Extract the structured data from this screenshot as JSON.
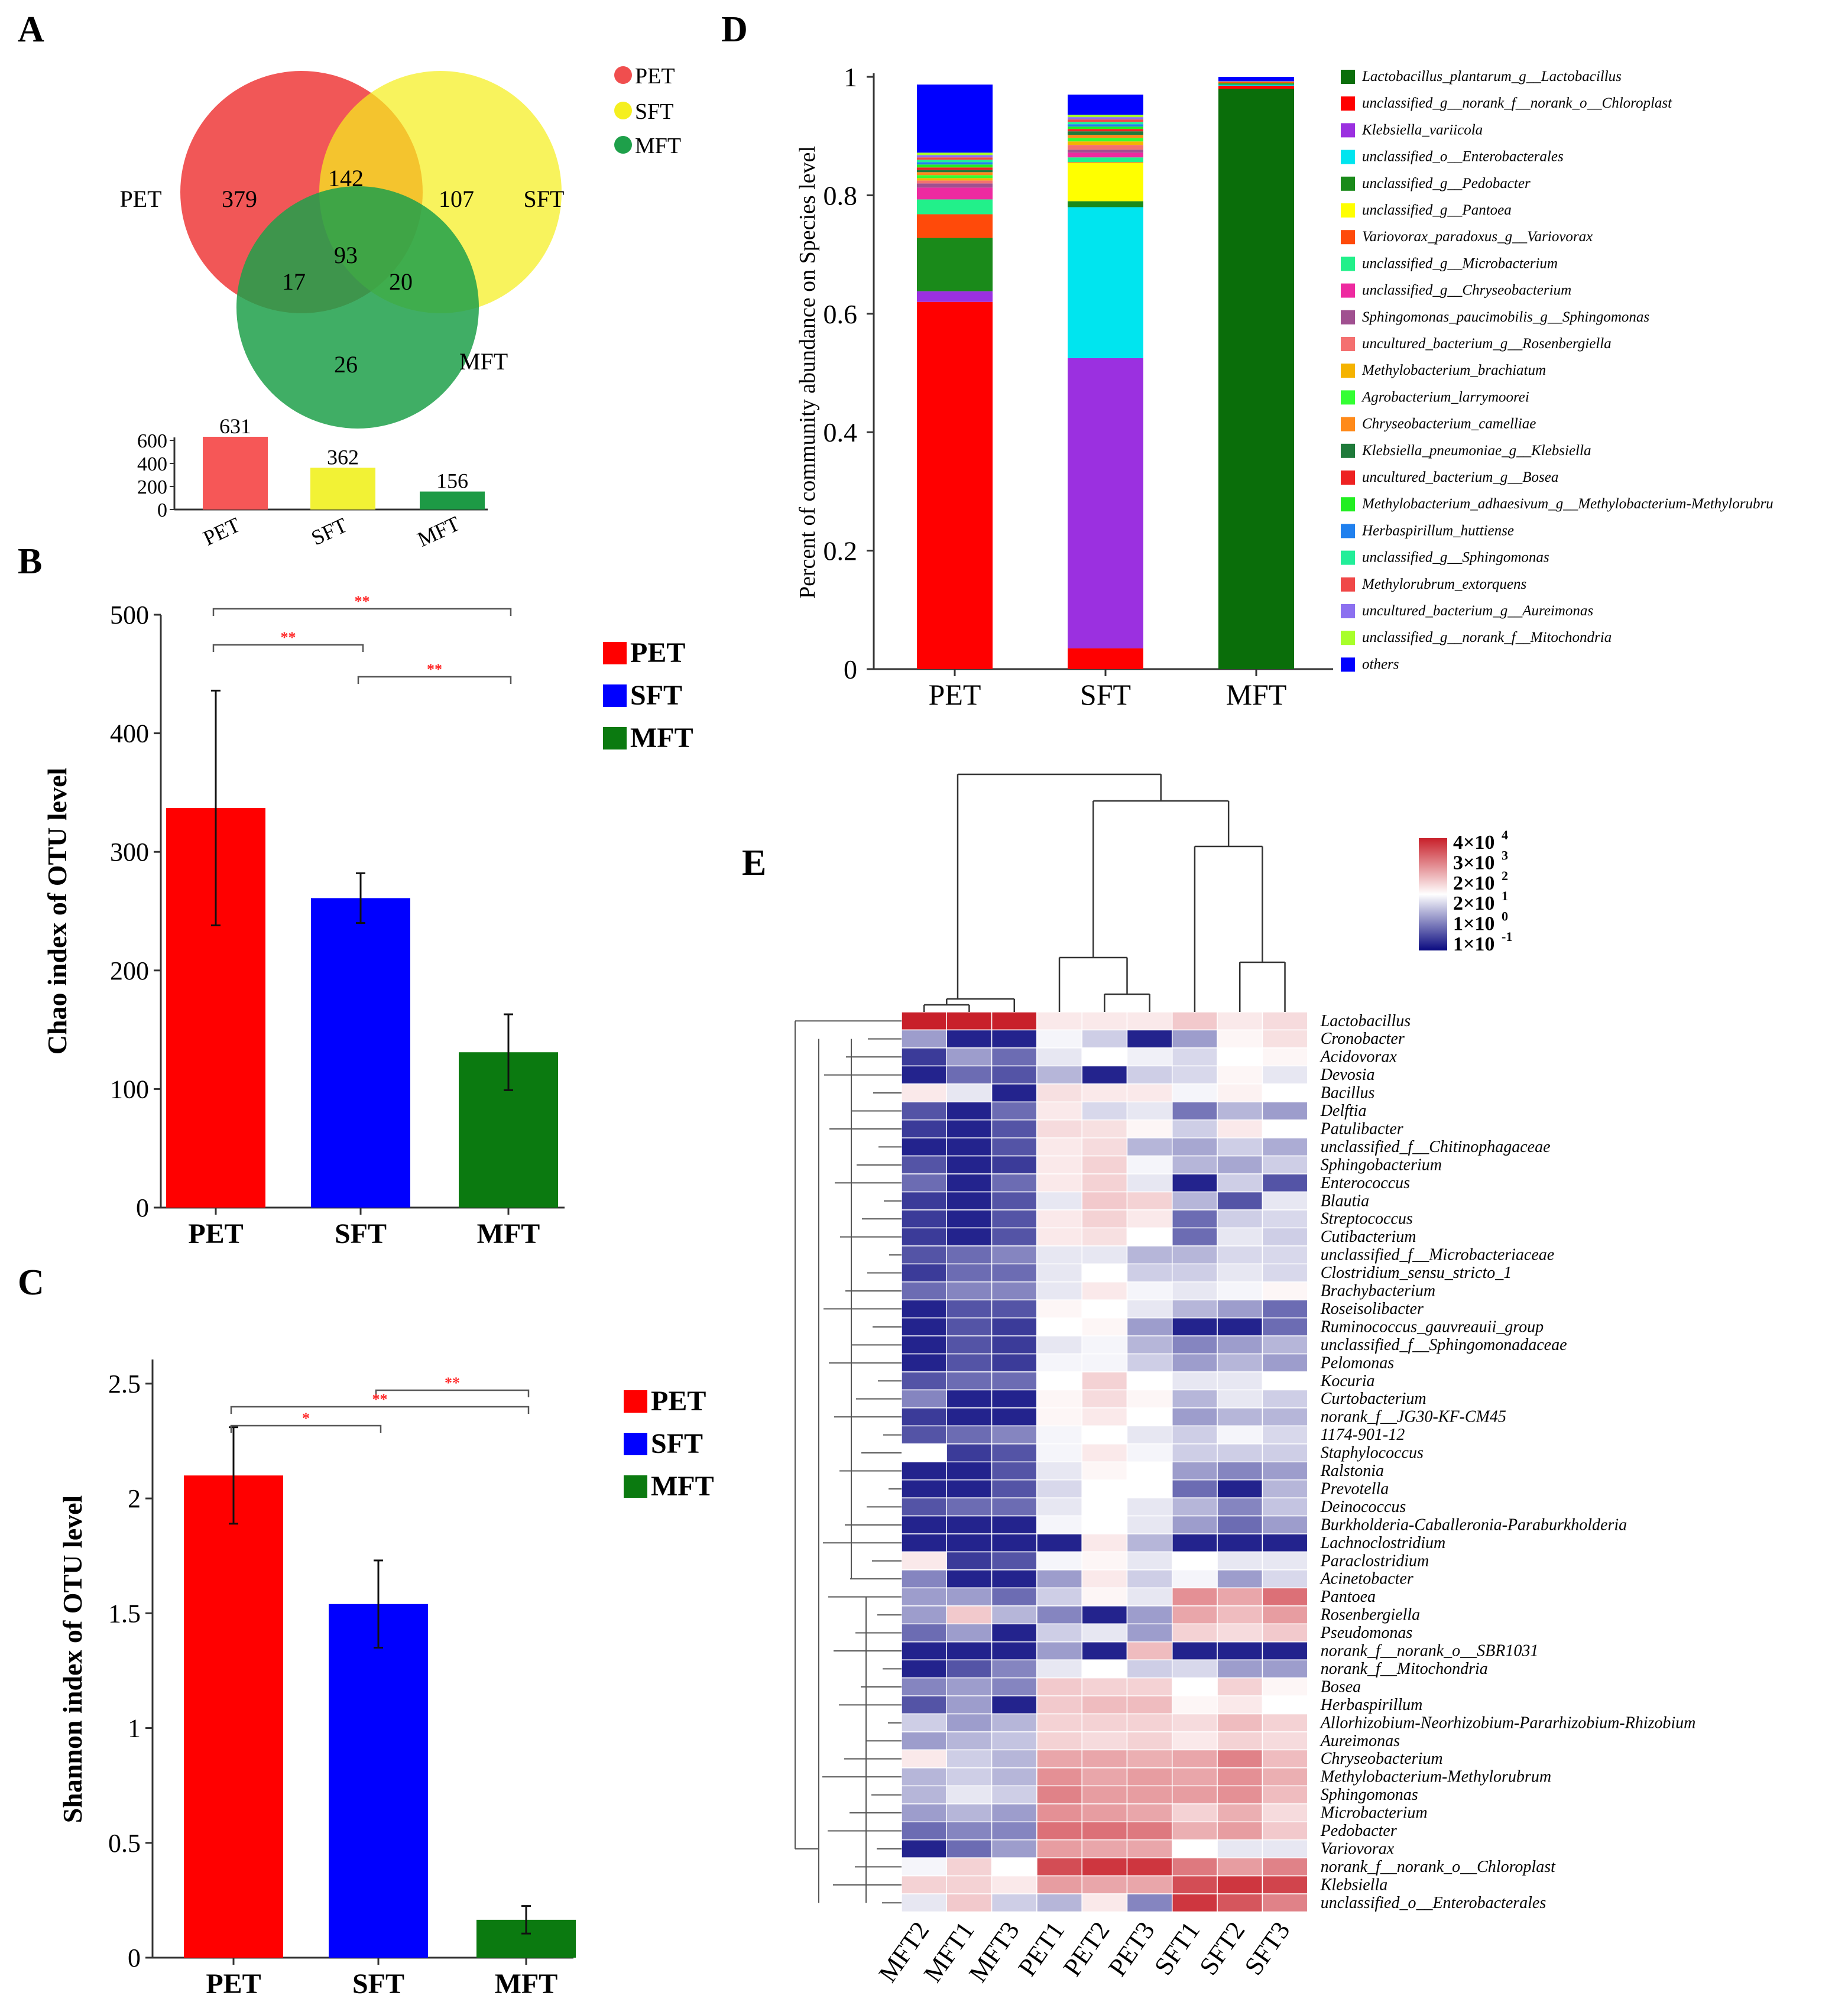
{
  "panel_labels": {
    "A": "A",
    "B": "B",
    "C": "C",
    "D": "D",
    "E": "E"
  },
  "colors": {
    "PET_venn": "#f04e4e",
    "SFT_venn": "#f5ef1f",
    "MFT_venn": "#1ea04a",
    "PET": "#ff0000",
    "SFT": "#0000ff",
    "MFT": "#0b7a10",
    "PET_hist": "#f65757",
    "SFT_hist": "#f2f235",
    "MFT_hist": "#1d9a45",
    "sig": "#ff2a2a"
  },
  "chart_data": [
    {
      "id": "A",
      "type": "venn",
      "legend": [
        "PET",
        "SFT",
        "MFT"
      ],
      "set_labels": [
        "PET",
        "SFT",
        "MFT"
      ],
      "regions": {
        "PET_only": "379",
        "PET_SFT": "142",
        "SFT_only": "107",
        "ALL": "93",
        "PET_MFT": "17",
        "SFT_MFT": "20",
        "MFT_only": "26"
      },
      "histogram": {
        "categories": [
          "PET",
          "SFT",
          "MFT"
        ],
        "values": [
          631,
          362,
          156
        ],
        "ticks": [
          0,
          200,
          400,
          600
        ]
      }
    },
    {
      "id": "B",
      "type": "bar",
      "ylabel": "Chao index of OTU level",
      "categories": [
        "PET",
        "SFT",
        "MFT"
      ],
      "values": [
        337,
        261,
        131
      ],
      "errors": [
        99,
        21,
        32
      ],
      "ylim": [
        0,
        500
      ],
      "yticks": [
        0,
        100,
        200,
        300,
        400,
        500
      ],
      "legend": [
        "PET",
        "SFT",
        "MFT"
      ],
      "significance": [
        {
          "from": "PET",
          "to": "MFT",
          "label": "**"
        },
        {
          "from": "PET",
          "to": "SFT",
          "label": "**"
        },
        {
          "from": "SFT",
          "to": "MFT",
          "label": "**"
        }
      ]
    },
    {
      "id": "C",
      "type": "bar",
      "ylabel": "Shannon index of OTU level",
      "categories": [
        "PET",
        "SFT",
        "MFT"
      ],
      "values": [
        2.1,
        1.54,
        0.165
      ],
      "errors": [
        0.21,
        0.19,
        0.06
      ],
      "ylim": [
        0,
        2.6
      ],
      "yticks": [
        "0",
        "0.5",
        "1",
        "1.5",
        "2",
        "2.5"
      ],
      "ytick_values": [
        0,
        0.5,
        1,
        1.5,
        2,
        2.5
      ],
      "legend": [
        "PET",
        "SFT",
        "MFT"
      ],
      "significance": [
        {
          "from": "SFT",
          "to": "MFT",
          "label": "**"
        },
        {
          "from": "PET",
          "to": "MFT",
          "label": "**"
        },
        {
          "from": "PET",
          "to": "SFT",
          "label": "*"
        }
      ]
    },
    {
      "id": "D",
      "type": "stacked_bar",
      "ylabel": "Percent of community abundance on Species level",
      "categories": [
        "PET",
        "SFT",
        "MFT"
      ],
      "yticks": [
        "0",
        "0.2",
        "0.4",
        "0.6",
        "0.8",
        "1"
      ],
      "ytick_values": [
        0,
        0.2,
        0.4,
        0.6,
        0.8,
        1
      ],
      "series": [
        {
          "name": "Lactobacillus_plantarum_g__Lactobacillus",
          "color": "#0a6e0a",
          "values": [
            0.0,
            0.0,
            0.98
          ]
        },
        {
          "name": "unclassified_g__norank_f__norank_o__Chloroplast",
          "color": "#ff0000",
          "values": [
            0.62,
            0.035,
            0.005
          ]
        },
        {
          "name": "Klebsiella_variicola",
          "color": "#9b30e0",
          "values": [
            0.018,
            0.49,
            0.0
          ]
        },
        {
          "name": "unclassified_o__Enterobacterales",
          "color": "#00e5ef",
          "values": [
            0.0,
            0.255,
            0.002
          ]
        },
        {
          "name": "unclassified_g__Pedobacter",
          "color": "#1a8a1a",
          "values": [
            0.09,
            0.01,
            0.002
          ]
        },
        {
          "name": "unclassified_g__Pantoea",
          "color": "#ffff00",
          "values": [
            0.0,
            0.065,
            0.001
          ]
        },
        {
          "name": "Variovorax_paradoxus_g__Variovorax",
          "color": "#ff4a0a",
          "values": [
            0.04,
            0.001,
            0.001
          ]
        },
        {
          "name": "unclassified_g__Microbacterium",
          "color": "#22f08a",
          "values": [
            0.025,
            0.008,
            0.001
          ]
        },
        {
          "name": "unclassified_g__Chryseobacterium",
          "color": "#ee2aa0",
          "values": [
            0.02,
            0.008,
            0.001
          ]
        },
        {
          "name": "Sphingomonas_paucimobilis_g__Sphingomonas",
          "color": "#a05090",
          "values": [
            0.007,
            0.005,
            0.0
          ]
        },
        {
          "name": "uncultured_bacterium_g__Rosenbergiella",
          "color": "#f47070",
          "values": [
            0.005,
            0.008,
            0.0
          ]
        },
        {
          "name": "Methylobacterium_brachiatum",
          "color": "#f5b300",
          "values": [
            0.004,
            0.006,
            0.0
          ]
        },
        {
          "name": "Agrobacterium_larrymoorei",
          "color": "#33ff33",
          "values": [
            0.005,
            0.006,
            0.0
          ]
        },
        {
          "name": "Chryseobacterium_camelliae",
          "color": "#ff8a1a",
          "values": [
            0.005,
            0.005,
            0.0
          ]
        },
        {
          "name": "Klebsiella_pneumoniae_g__Klebsiella",
          "color": "#1f7a3a",
          "values": [
            0.004,
            0.006,
            0.0
          ]
        },
        {
          "name": "uncultured_bacterium_g__Bosea",
          "color": "#ee2222",
          "values": [
            0.004,
            0.004,
            0.0
          ]
        },
        {
          "name": "Methylobacterium_adhaesivum_g__Methylobacterium-Methylorubru",
          "color": "#22ee22",
          "values": [
            0.005,
            0.004,
            0.0
          ]
        },
        {
          "name": "Herbaspirillum_huttiense",
          "color": "#2080ee",
          "values": [
            0.004,
            0.004,
            0.0
          ]
        },
        {
          "name": "unclassified_g__Sphingomonas",
          "color": "#22ee99",
          "values": [
            0.004,
            0.004,
            0.0
          ]
        },
        {
          "name": "Methylorubrum_extorquens",
          "color": "#f04848",
          "values": [
            0.004,
            0.004,
            0.0
          ]
        },
        {
          "name": "uncultured_bacterium_g__Aureimonas",
          "color": "#8c70f0",
          "values": [
            0.004,
            0.004,
            0.0
          ]
        },
        {
          "name": "unclassified_g__norank_f__Mitochondria",
          "color": "#a8ff2a",
          "values": [
            0.004,
            0.004,
            0.0
          ]
        },
        {
          "name": "others",
          "color": "#0000ff",
          "values": [
            0.115,
            0.034,
            0.007
          ]
        }
      ]
    },
    {
      "id": "E",
      "type": "heatmap",
      "columns": [
        "MFT2",
        "MFT1",
        "MFT3",
        "PET1",
        "PET2",
        "PET3",
        "SFT1",
        "SFT2",
        "SFT3"
      ],
      "colorbar": {
        "labels": [
          "4×10",
          "3×10",
          "2×10",
          "2×10",
          "1×10",
          "1×10"
        ],
        "exponents": [
          "4",
          "3",
          "2",
          "1",
          "0",
          "-1"
        ],
        "high": "#c8202a",
        "mid": "#ffffff",
        "low": "#0a0a80"
      },
      "rows": [
        "Lactobacillus",
        "Cronobacter",
        "Acidovorax",
        "Devosia",
        "Bacillus",
        "Delftia",
        "Patulibacter",
        "unclassified_f__Chitinophagaceae",
        "Sphingobacterium",
        "Enterococcus",
        "Blautia",
        "Streptococcus",
        "Cutibacterium",
        "unclassified_f__Microbacteriaceae",
        "Clostridium_sensu_stricto_1",
        "Brachybacterium",
        "Roseisolibacter",
        "Ruminococcus_gauvreauii_group",
        "unclassified_f__Sphingomonadaceae",
        "Pelomonas",
        "Kocuria",
        "Curtobacterium",
        "norank_f__JG30-KF-CM45",
        "1174-901-12",
        "Staphylococcus",
        "Ralstonia",
        "Prevotella",
        "Deinococcus",
        "Burkholderia-Caballeronia-Paraburkholderia",
        "Lachnoclostridium",
        "Paraclostridium",
        "Acinetobacter",
        "Pantoea",
        "Rosenbergiella",
        "Pseudomonas",
        "norank_f__norank_o__SBR1031",
        "norank_f__Mitochondria",
        "Bosea",
        "Herbaspirillum",
        "Allorhizobium-Neorhizobium-Pararhizobium-Rhizobium",
        "Aureimonas",
        "Chryseobacterium",
        "Methylobacterium-Methylorubrum",
        "Sphingomonas",
        "Microbacterium",
        "Pedobacter",
        "Variovorax",
        "norank_f__norank_o__Chloroplast",
        "Klebsiella",
        "unclassified_o__Enterobacterales"
      ],
      "values": [
        [
          1,
          1,
          1,
          0.55,
          0.55,
          0.55,
          0.62,
          0.55,
          0.58
        ],
        [
          0.3,
          0.05,
          0.05,
          0.48,
          0.4,
          0.05,
          0.3,
          0.52,
          0.57
        ],
        [
          0.1,
          0.3,
          0.2,
          0.45,
          0.5,
          0.47,
          0.42,
          0.5,
          0.52
        ],
        [
          0.05,
          0.2,
          0.15,
          0.35,
          0.05,
          0.4,
          0.42,
          0.52,
          0.45
        ],
        [
          0.55,
          0.45,
          0.05,
          0.57,
          0.55,
          0.55,
          0.48,
          0.53,
          0.5
        ],
        [
          0.15,
          0.05,
          0.2,
          0.55,
          0.42,
          0.45,
          0.22,
          0.35,
          0.3
        ],
        [
          0.1,
          0.05,
          0.15,
          0.58,
          0.57,
          0.52,
          0.4,
          0.55,
          0.5
        ],
        [
          0.05,
          0.05,
          0.15,
          0.55,
          0.58,
          0.35,
          0.32,
          0.4,
          0.33
        ],
        [
          0.15,
          0.05,
          0.1,
          0.55,
          0.6,
          0.48,
          0.35,
          0.32,
          0.4
        ],
        [
          0.2,
          0.05,
          0.2,
          0.55,
          0.6,
          0.45,
          0.05,
          0.4,
          0.15
        ],
        [
          0.1,
          0.05,
          0.15,
          0.45,
          0.62,
          0.6,
          0.35,
          0.15,
          0.45
        ],
        [
          0.1,
          0.05,
          0.15,
          0.55,
          0.6,
          0.55,
          0.2,
          0.4,
          0.42
        ],
        [
          0.1,
          0.05,
          0.15,
          0.55,
          0.57,
          0.5,
          0.2,
          0.45,
          0.4
        ],
        [
          0.15,
          0.2,
          0.25,
          0.45,
          0.45,
          0.35,
          0.35,
          0.42,
          0.42
        ],
        [
          0.1,
          0.2,
          0.2,
          0.45,
          0.5,
          0.4,
          0.4,
          0.45,
          0.42
        ],
        [
          0.2,
          0.25,
          0.25,
          0.45,
          0.55,
          0.48,
          0.45,
          0.48,
          0.52
        ],
        [
          0.05,
          0.15,
          0.15,
          0.52,
          0.5,
          0.45,
          0.35,
          0.3,
          0.2
        ],
        [
          0.05,
          0.15,
          0.1,
          0.5,
          0.52,
          0.3,
          0.05,
          0.05,
          0.2
        ],
        [
          0.05,
          0.15,
          0.1,
          0.45,
          0.48,
          0.35,
          0.25,
          0.3,
          0.35
        ],
        [
          0.05,
          0.15,
          0.1,
          0.48,
          0.48,
          0.4,
          0.3,
          0.35,
          0.3
        ],
        [
          0.15,
          0.2,
          0.2,
          0.5,
          0.6,
          0.5,
          0.45,
          0.45,
          0.5
        ],
        [
          0.25,
          0.05,
          0.05,
          0.52,
          0.58,
          0.52,
          0.35,
          0.45,
          0.4
        ],
        [
          0.1,
          0.05,
          0.05,
          0.52,
          0.55,
          0.5,
          0.3,
          0.35,
          0.35
        ],
        [
          0.15,
          0.2,
          0.25,
          0.48,
          0.5,
          0.45,
          0.4,
          0.48,
          0.42
        ],
        [
          0.5,
          0.1,
          0.15,
          0.48,
          0.55,
          0.48,
          0.4,
          0.4,
          0.4
        ],
        [
          0.05,
          0.05,
          0.15,
          0.45,
          0.52,
          0.5,
          0.3,
          0.25,
          0.3
        ],
        [
          0.05,
          0.05,
          0.15,
          0.42,
          0.5,
          0.5,
          0.2,
          0.05,
          0.35
        ],
        [
          0.15,
          0.2,
          0.2,
          0.45,
          0.5,
          0.45,
          0.35,
          0.25,
          0.38
        ],
        [
          0.05,
          0.05,
          0.05,
          0.48,
          0.5,
          0.45,
          0.3,
          0.2,
          0.3
        ],
        [
          0.05,
          0.05,
          0.05,
          0.05,
          0.55,
          0.35,
          0.05,
          0.05,
          0.05
        ],
        [
          0.55,
          0.1,
          0.15,
          0.48,
          0.52,
          0.45,
          0.5,
          0.45,
          0.45
        ],
        [
          0.25,
          0.05,
          0.05,
          0.3,
          0.55,
          0.4,
          0.48,
          0.3,
          0.42
        ],
        [
          0.3,
          0.3,
          0.2,
          0.4,
          0.52,
          0.45,
          0.75,
          0.7,
          0.82
        ],
        [
          0.3,
          0.62,
          0.35,
          0.25,
          0.05,
          0.3,
          0.7,
          0.65,
          0.72
        ],
        [
          0.2,
          0.3,
          0.05,
          0.4,
          0.45,
          0.3,
          0.6,
          0.58,
          0.62
        ],
        [
          0.05,
          0.05,
          0.05,
          0.3,
          0.05,
          0.65,
          0.05,
          0.05,
          0.05
        ],
        [
          0.05,
          0.15,
          0.25,
          0.45,
          0.5,
          0.4,
          0.42,
          0.3,
          0.3
        ],
        [
          0.25,
          0.3,
          0.25,
          0.62,
          0.6,
          0.6,
          0.5,
          0.6,
          0.52
        ],
        [
          0.15,
          0.3,
          0.05,
          0.62,
          0.65,
          0.65,
          0.52,
          0.55,
          0.5
        ],
        [
          0.4,
          0.3,
          0.35,
          0.6,
          0.6,
          0.6,
          0.58,
          0.65,
          0.6
        ],
        [
          0.3,
          0.35,
          0.38,
          0.6,
          0.58,
          0.6,
          0.55,
          0.6,
          0.58
        ],
        [
          0.55,
          0.4,
          0.35,
          0.7,
          0.7,
          0.68,
          0.7,
          0.78,
          0.65
        ],
        [
          0.35,
          0.4,
          0.35,
          0.75,
          0.7,
          0.72,
          0.7,
          0.75,
          0.68
        ],
        [
          0.35,
          0.45,
          0.4,
          0.78,
          0.72,
          0.72,
          0.72,
          0.75,
          0.65
        ],
        [
          0.3,
          0.35,
          0.3,
          0.75,
          0.72,
          0.7,
          0.6,
          0.68,
          0.58
        ],
        [
          0.2,
          0.25,
          0.25,
          0.82,
          0.82,
          0.8,
          0.68,
          0.72,
          0.62
        ],
        [
          0.05,
          0.2,
          0.3,
          0.72,
          0.7,
          0.7,
          0.5,
          0.45,
          0.45
        ],
        [
          0.48,
          0.6,
          0.5,
          0.9,
          0.95,
          0.95,
          0.8,
          0.72,
          0.78
        ],
        [
          0.6,
          0.6,
          0.55,
          0.72,
          0.7,
          0.7,
          0.9,
          0.95,
          0.92
        ],
        [
          0.45,
          0.62,
          0.4,
          0.35,
          0.55,
          0.25,
          0.95,
          0.88,
          0.78
        ]
      ]
    }
  ]
}
